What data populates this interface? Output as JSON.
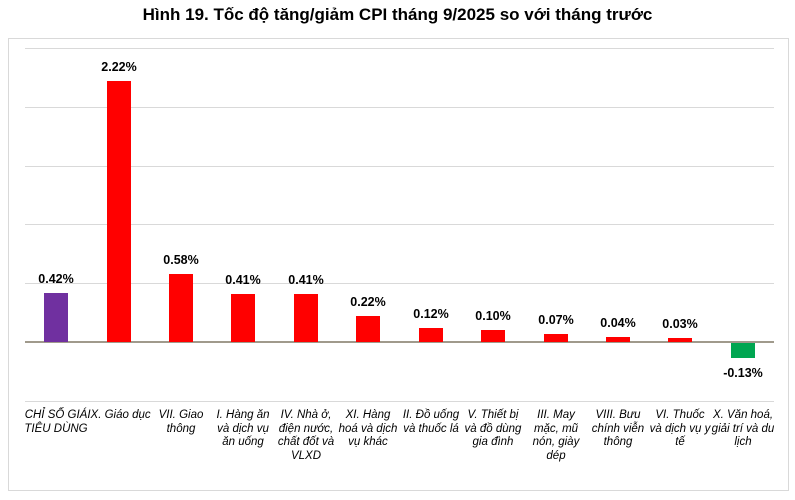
{
  "page": {
    "title": "Hình 19. Tốc độ tăng/giảm CPI tháng 9/2025 so với tháng trước"
  },
  "chart_data": {
    "type": "bar",
    "title": "Hình 19. Tốc độ tăng/giảm CPI tháng 9/2025 so với tháng trước",
    "unit": "%",
    "categories": [
      "CHỈ SỐ GIÁ TIÊU DÙNG",
      "IX. Giáo dục",
      "VII. Giao thông",
      "I. Hàng ăn và dịch vụ ăn uống",
      "IV. Nhà ở, điện nước, chất đốt và VLXD",
      "XI. Hàng hoá và dịch vụ khác",
      "II. Đồ uống và thuốc lá",
      "V. Thiết bị và đồ dùng gia đình",
      "III. May mặc, mũ nón, giày dép",
      "VIII. Bưu chính viễn thông",
      "VI. Thuốc và dịch vụ y tế",
      "X. Văn hoá, giải trí và du lịch"
    ],
    "values": [
      0.42,
      2.22,
      0.58,
      0.41,
      0.41,
      0.22,
      0.12,
      0.1,
      0.07,
      0.04,
      0.03,
      -0.13
    ],
    "value_labels": [
      "0.42%",
      "2.22%",
      "0.58%",
      "0.41%",
      "0.41%",
      "0.22%",
      "0.12%",
      "0.10%",
      "0.07%",
      "0.04%",
      "0.03%",
      "-0.13%"
    ],
    "bar_colors": [
      "#7030A0",
      "#FF0000",
      "#FF0000",
      "#FF0000",
      "#FF0000",
      "#FF0000",
      "#FF0000",
      "#FF0000",
      "#FF0000",
      "#FF0000",
      "#FF0000",
      "#00A651"
    ],
    "ylim": [
      -0.5,
      2.5
    ],
    "gridline_step": 0.5,
    "grid": true,
    "legend_position": "none",
    "xlabel": "",
    "ylabel": "",
    "colors": {
      "cpi_total_bar": "#7030A0",
      "increase_bar": "#FF0000",
      "decrease_bar": "#00A651",
      "gridline": "#D9D9D9",
      "axis_line": "#A09A8C",
      "plot_border": "#D9D9D9",
      "text": "#000000"
    }
  }
}
